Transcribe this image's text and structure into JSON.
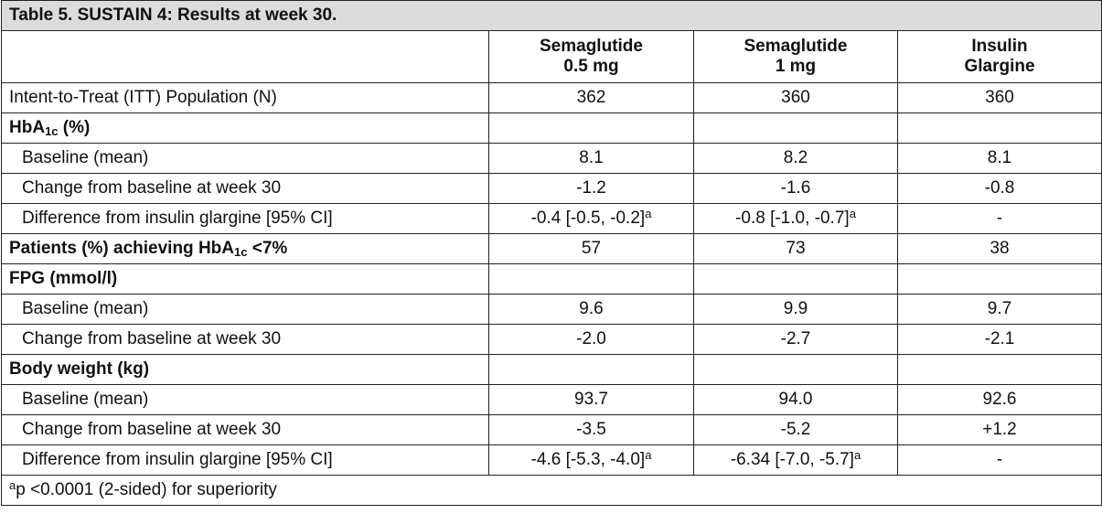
{
  "table": {
    "title": "Table 5. SUSTAIN 4: Results at week 30.",
    "columns": [
      [
        "Semaglutide",
        "0.5 mg"
      ],
      [
        "Semaglutide",
        "1 mg"
      ],
      [
        "Insulin",
        "Glargine"
      ]
    ],
    "rows": [
      {
        "style": "plain",
        "label": "Intent-to-Treat (ITT) Population (N)",
        "cells": [
          "362",
          "360",
          "360"
        ]
      },
      {
        "style": "heading",
        "label": [
          {
            "text": "HbA"
          },
          {
            "sub": "1c"
          },
          {
            "text": " (%)"
          }
        ]
      },
      {
        "style": "sub",
        "label": "Baseline (mean)",
        "cells": [
          "8.1",
          "8.2",
          "8.1"
        ]
      },
      {
        "style": "sub",
        "label": "Change from baseline at week 30",
        "cells": [
          "-1.2",
          "-1.6",
          "-0.8"
        ]
      },
      {
        "style": "sub",
        "label": "Difference from insulin glargine [95% CI]",
        "cells": [
          [
            {
              "text": "-0.4 [-0.5, -0.2]"
            },
            {
              "sup": "a"
            }
          ],
          [
            {
              "text": "-0.8 [-1.0, -0.7]"
            },
            {
              "sup": "a"
            }
          ],
          "-"
        ]
      },
      {
        "style": "heading",
        "label": [
          {
            "text": "Patients (%) achieving HbA"
          },
          {
            "sub": "1c"
          },
          {
            "text": " <7%"
          }
        ],
        "cells": [
          "57",
          "73",
          "38"
        ]
      },
      {
        "style": "heading",
        "label": "FPG (mmol/l)"
      },
      {
        "style": "sub",
        "label": "Baseline (mean)",
        "cells": [
          "9.6",
          "9.9",
          "9.7"
        ]
      },
      {
        "style": "sub",
        "label": "Change from baseline at week 30",
        "cells": [
          "-2.0",
          "-2.7",
          "-2.1"
        ]
      },
      {
        "style": "heading",
        "label": "Body weight (kg)"
      },
      {
        "style": "sub",
        "label": "Baseline (mean)",
        "cells": [
          "93.7",
          "94.0",
          "92.6"
        ]
      },
      {
        "style": "sub",
        "label": "Change from baseline at week 30",
        "cells": [
          "-3.5",
          "-5.2",
          "+1.2"
        ]
      },
      {
        "style": "sub",
        "label": "Difference from insulin glargine [95% CI]",
        "cells": [
          [
            {
              "text": "-4.6 [-5.3, -4.0]"
            },
            {
              "sup": "a"
            }
          ],
          [
            {
              "text": "-6.34 [-7.0, -5.7]"
            },
            {
              "sup": "a"
            }
          ],
          "-"
        ]
      }
    ],
    "footnote": [
      {
        "sup": "a"
      },
      {
        "text": "p <0.0001 (2-sided) for superiority"
      }
    ]
  }
}
